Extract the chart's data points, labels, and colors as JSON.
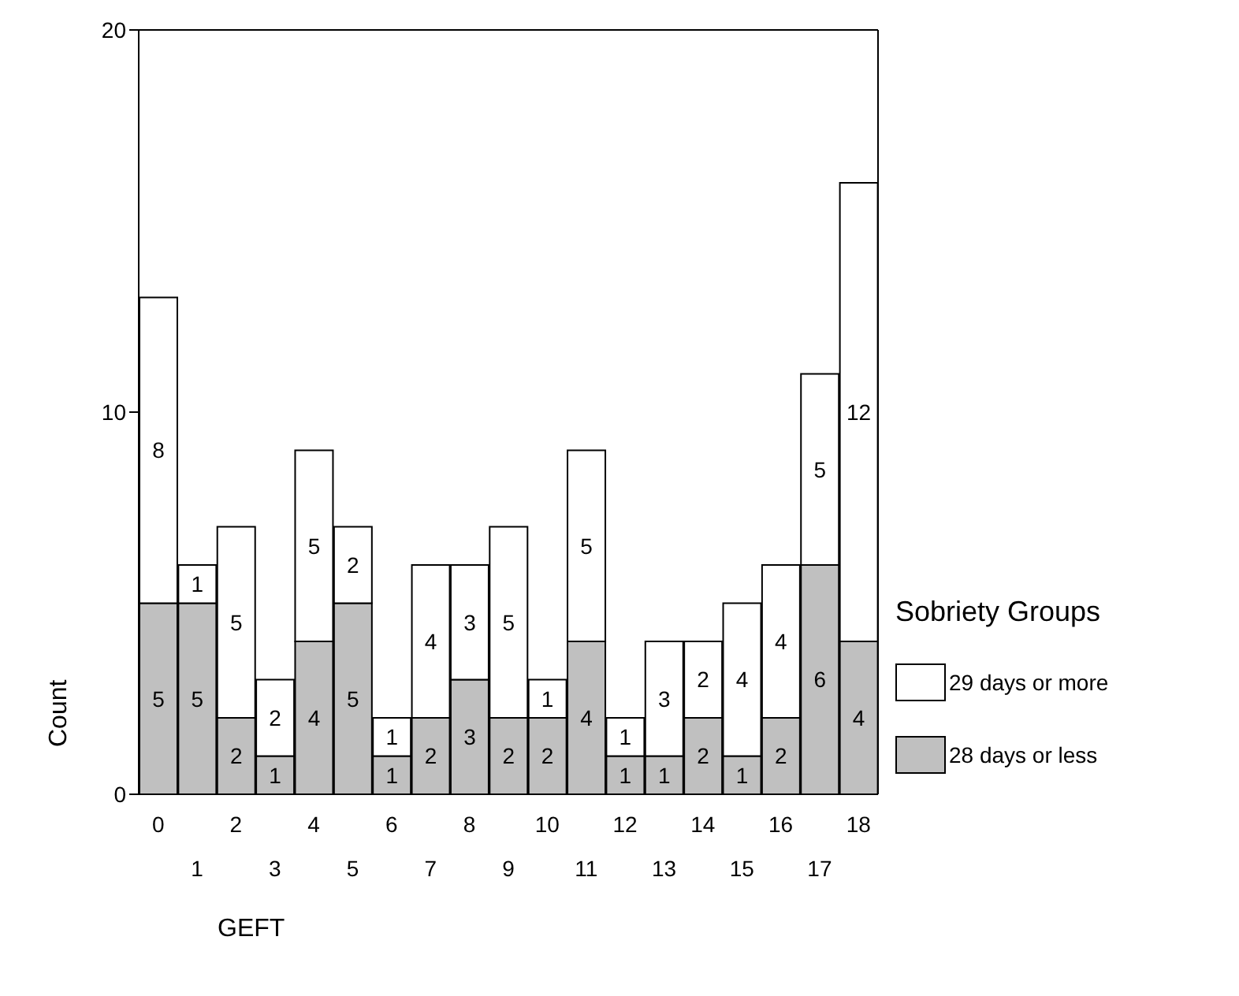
{
  "chart_data": {
    "type": "bar",
    "stacked": true,
    "xlabel": "GEFT",
    "ylabel": "Count",
    "legend_title": "Sobriety Groups",
    "legend": "right",
    "categories": [
      "0",
      "1",
      "2",
      "3",
      "4",
      "5",
      "6",
      "7",
      "8",
      "9",
      "10",
      "11",
      "12",
      "13",
      "14",
      "15",
      "16",
      "17",
      "18"
    ],
    "series": [
      {
        "name": "28 days or less",
        "color": "#c0c0c0",
        "values": [
          5,
          5,
          2,
          1,
          4,
          5,
          1,
          2,
          3,
          2,
          2,
          4,
          1,
          1,
          2,
          1,
          2,
          6,
          4
        ]
      },
      {
        "name": "29 days or more",
        "color": "#ffffff",
        "values": [
          8,
          1,
          5,
          2,
          5,
          2,
          1,
          4,
          3,
          5,
          1,
          5,
          1,
          3,
          2,
          4,
          4,
          5,
          12
        ]
      }
    ],
    "ylim": [
      0,
      20
    ],
    "yticks": [
      0,
      10,
      20
    ],
    "grid": false,
    "data_labels": true
  }
}
